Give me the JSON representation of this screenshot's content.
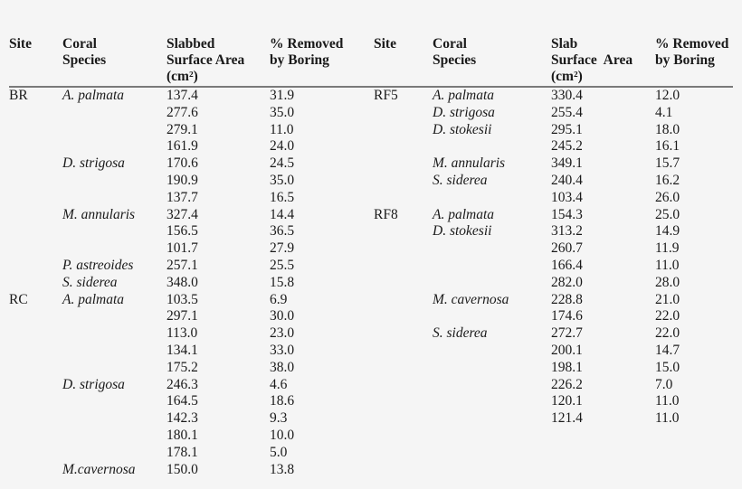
{
  "header": {
    "left": {
      "site": "Site",
      "species": [
        "Coral",
        "Species"
      ],
      "area": [
        "Slabbed",
        "Surface Area",
        "(cm²)"
      ],
      "removed": [
        "% Removed",
        "by Boring"
      ]
    },
    "right": {
      "site": "Site",
      "species": [
        "Coral",
        "Species"
      ],
      "area": [
        "Slab",
        "Surface  Area",
        "(cm²)"
      ],
      "removed": [
        "% Removed",
        "by Boring"
      ]
    }
  },
  "left_rows": [
    {
      "site": "BR",
      "species": "A. palmata",
      "area": "137.4",
      "removed": "31.9"
    },
    {
      "site": "",
      "species": "",
      "area": "277.6",
      "removed": "35.0"
    },
    {
      "site": "",
      "species": "",
      "area": "279.1",
      "removed": "11.0"
    },
    {
      "site": "",
      "species": "",
      "area": "161.9",
      "removed": "24.0"
    },
    {
      "site": "",
      "species": "D. strigosa",
      "area": "170.6",
      "removed": "24.5"
    },
    {
      "site": "",
      "species": "",
      "area": "190.9",
      "removed": "35.0"
    },
    {
      "site": "",
      "species": "",
      "area": "137.7",
      "removed": "16.5"
    },
    {
      "site": "",
      "species": "M. annularis",
      "area": "327.4",
      "removed": "14.4"
    },
    {
      "site": "",
      "species": "",
      "area": "156.5",
      "removed": "36.5"
    },
    {
      "site": "",
      "species": "",
      "area": "101.7",
      "removed": "27.9"
    },
    {
      "site": "",
      "species": "P. astreoides",
      "area": "257.1",
      "removed": "25.5"
    },
    {
      "site": "",
      "species": "S. siderea",
      "area": "348.0",
      "removed": "15.8"
    },
    {
      "site": "RC",
      "species": "A. palmata",
      "area": "103.5",
      "removed": "6.9"
    },
    {
      "site": "",
      "species": "",
      "area": "297.1",
      "removed": "30.0"
    },
    {
      "site": "",
      "species": "",
      "area": "113.0",
      "removed": "23.0"
    },
    {
      "site": "",
      "species": "",
      "area": "134.1",
      "removed": "33.0"
    },
    {
      "site": "",
      "species": "",
      "area": "175.2",
      "removed": "38.0"
    },
    {
      "site": "",
      "species": "D. strigosa",
      "area": "246.3",
      "removed": "4.6"
    },
    {
      "site": "",
      "species": "",
      "area": "164.5",
      "removed": "18.6"
    },
    {
      "site": "",
      "species": "",
      "area": "142.3",
      "removed": "9.3"
    },
    {
      "site": "",
      "species": "",
      "area": "180.1",
      "removed": "10.0"
    },
    {
      "site": "",
      "species": "",
      "area": "178.1",
      "removed": "5.0"
    },
    {
      "site": "",
      "species": "M.cavernosa",
      "area": "150.0",
      "removed": "13.8"
    }
  ],
  "right_rows": [
    {
      "site": "RF5",
      "species": "A. palmata",
      "area": "330.4",
      "removed": "12.0"
    },
    {
      "site": "",
      "species": "D. strigosa",
      "area": "255.4",
      "removed": "4.1"
    },
    {
      "site": "",
      "species": "D. stokesii",
      "area": "295.1",
      "removed": "18.0"
    },
    {
      "site": "",
      "species": "",
      "area": "245.2",
      "removed": "16.1"
    },
    {
      "site": "",
      "species": "M. annularis",
      "area": "349.1",
      "removed": "15.7"
    },
    {
      "site": "",
      "species": "S. siderea",
      "area": "240.4",
      "removed": "16.2"
    },
    {
      "site": "",
      "species": "",
      "area": "103.4",
      "removed": "26.0"
    },
    {
      "site": "RF8",
      "species": "A. palmata",
      "area": "154.3",
      "removed": "25.0"
    },
    {
      "site": "",
      "species": "D. stokesii",
      "area": "313.2",
      "removed": "14.9"
    },
    {
      "site": "",
      "species": "",
      "area": "260.7",
      "removed": "11.9"
    },
    {
      "site": "",
      "species": "",
      "area": "166.4",
      "removed": "11.0"
    },
    {
      "site": "",
      "species": "",
      "area": "282.0",
      "removed": "28.0"
    },
    {
      "site": "",
      "species": "M. cavernosa",
      "area": "228.8",
      "removed": "21.0"
    },
    {
      "site": "",
      "species": "",
      "area": "174.6",
      "removed": "22.0"
    },
    {
      "site": "",
      "species": "S. siderea",
      "area": "272.7",
      "removed": "22.0"
    },
    {
      "site": "",
      "species": "",
      "area": "200.1",
      "removed": "14.7"
    },
    {
      "site": "",
      "species": "",
      "area": "198.1",
      "removed": "15.0"
    },
    {
      "site": "",
      "species": "",
      "area": "226.2",
      "removed": "7.0"
    },
    {
      "site": "",
      "species": "",
      "area": "120.1",
      "removed": "11.0"
    },
    {
      "site": "",
      "species": "",
      "area": "121.4",
      "removed": "11.0"
    }
  ]
}
